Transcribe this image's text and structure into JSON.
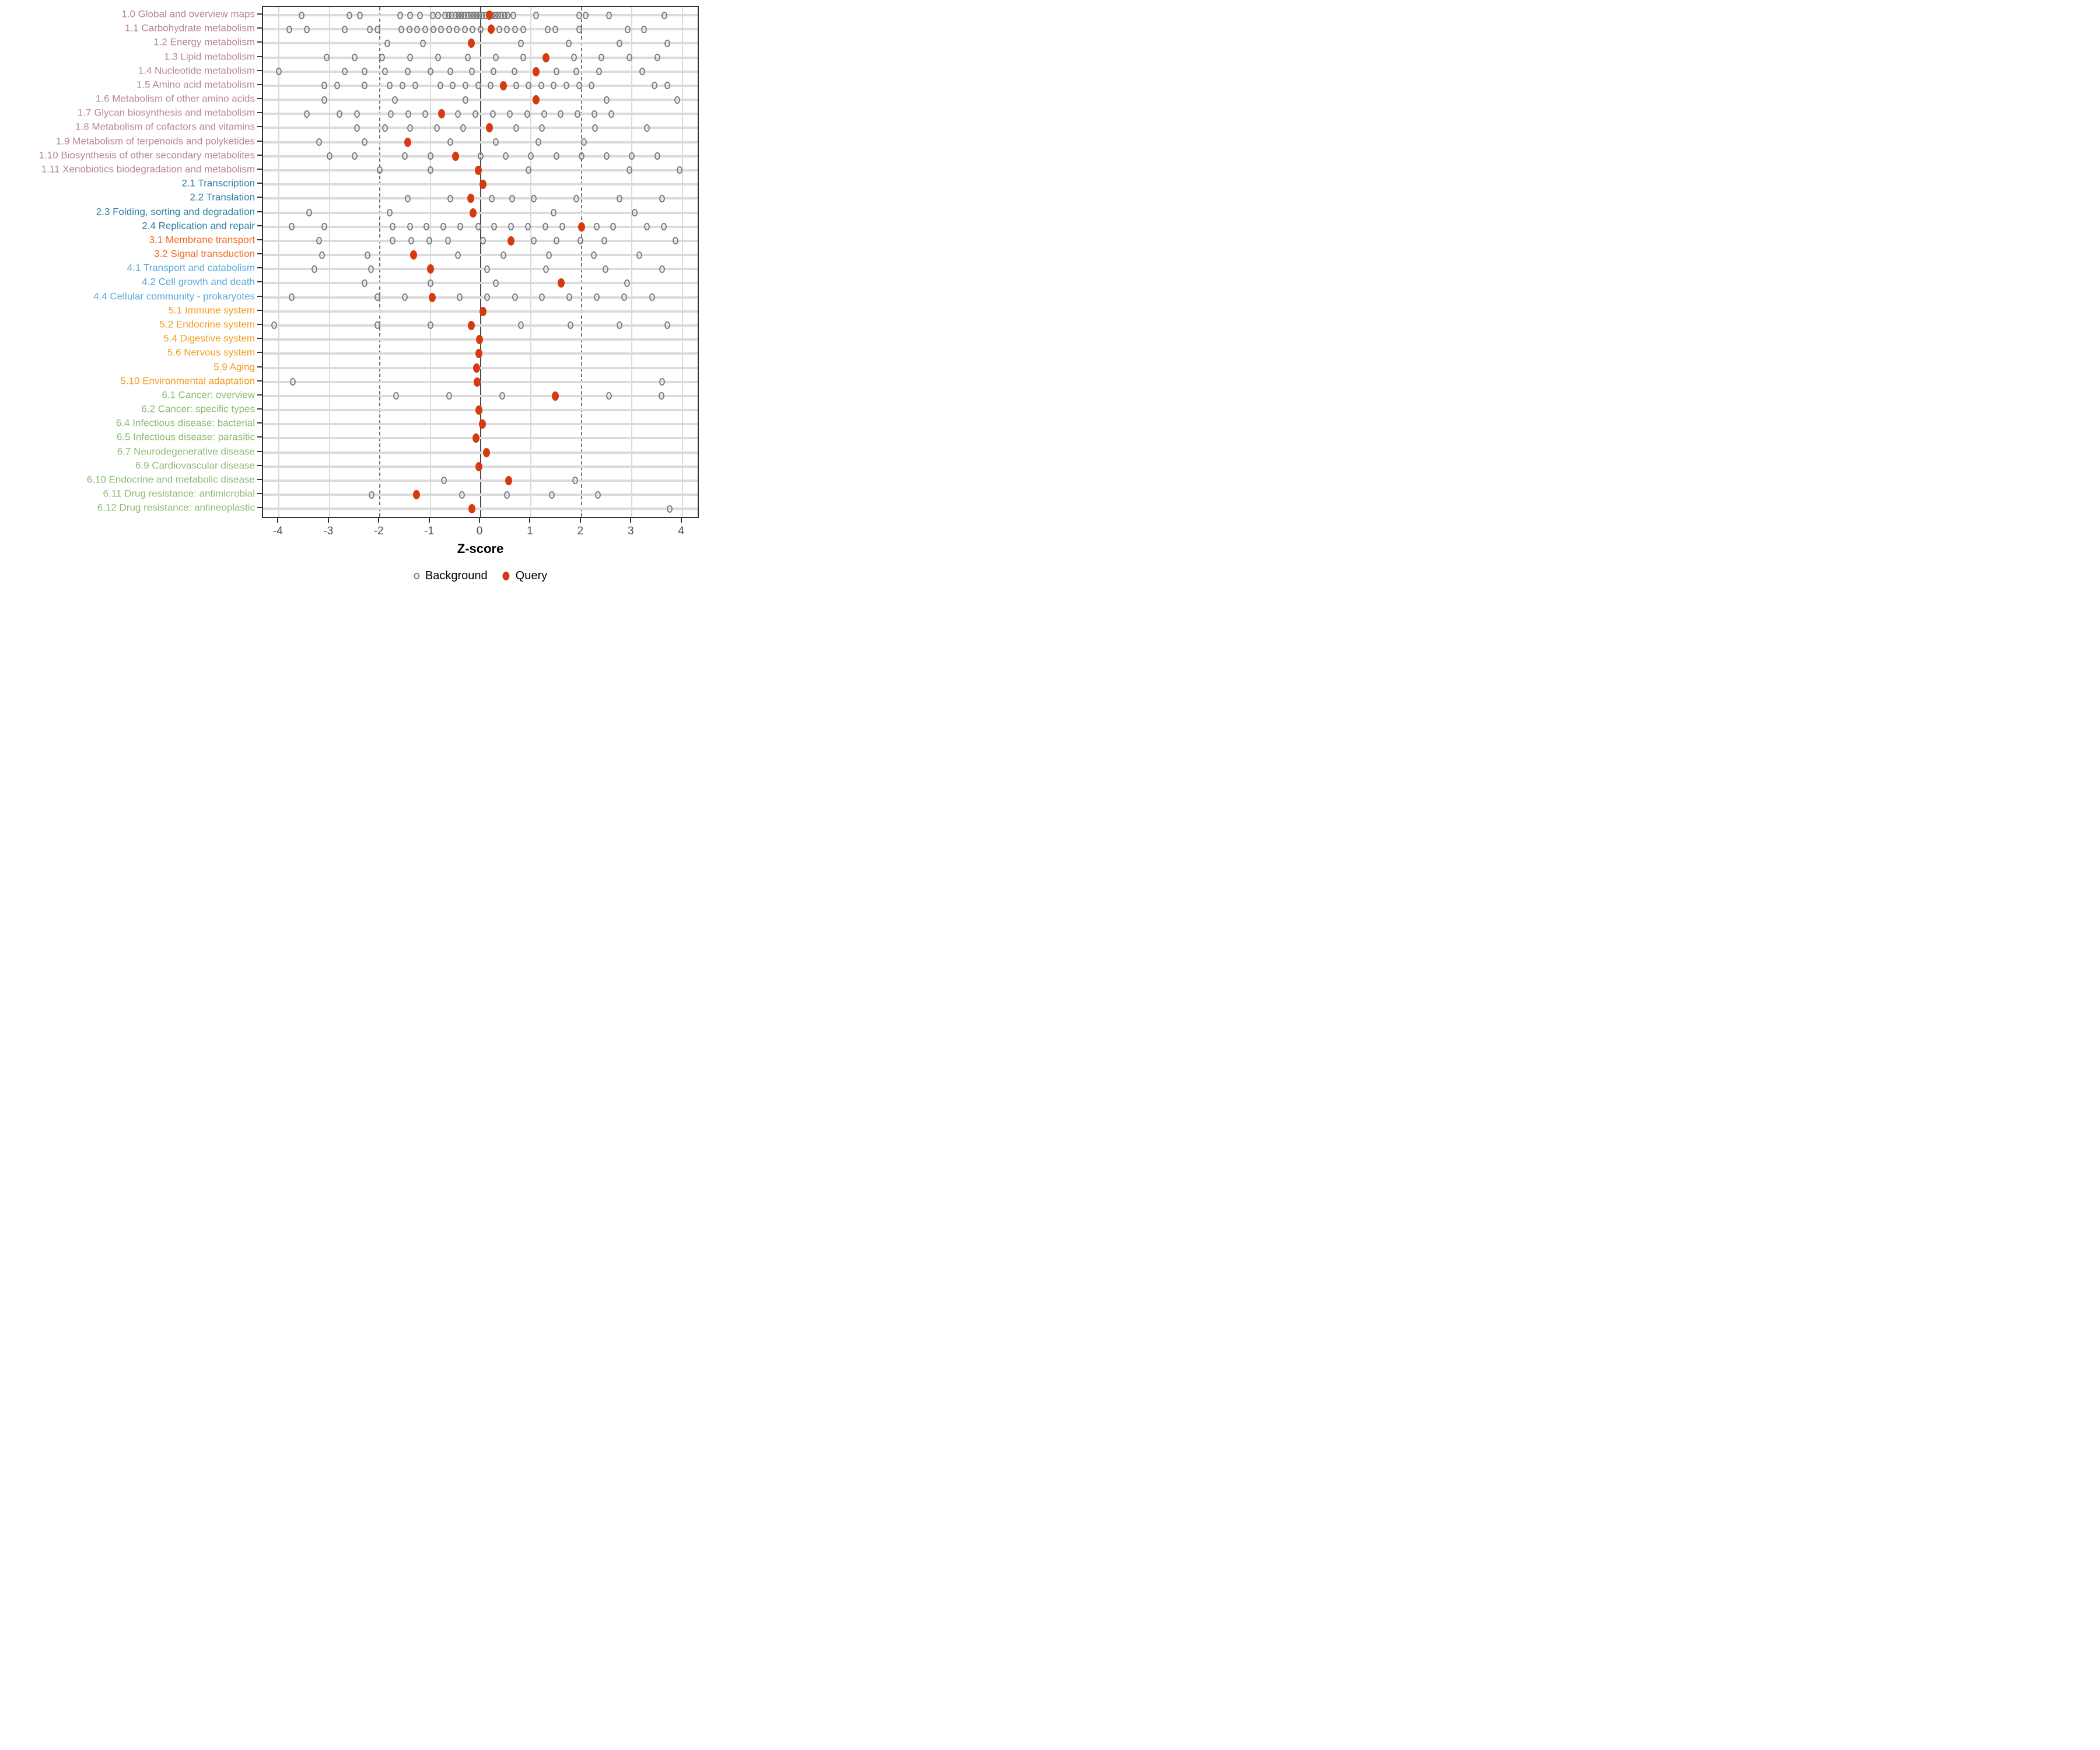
{
  "chart_data": {
    "type": "scatter",
    "title": "",
    "xlabel": "Z-score",
    "x_ticks": [
      -4,
      -3,
      -2,
      -1,
      0,
      1,
      2,
      3,
      4
    ],
    "xlim": [
      -4.33,
      4.33
    ],
    "reference_lines": {
      "zero_line": 0,
      "dashed_lines": [
        -2,
        2
      ]
    },
    "grid": "on",
    "legend": {
      "position": "bottom",
      "background_label": "Background",
      "query_label": "Query"
    },
    "group_colors": {
      "1": "#ba8590",
      "2": "#2e7ea6",
      "3": "#f26822",
      "4": "#5aa7d9",
      "5": "#f39c1f",
      "6": "#8cba70"
    },
    "point_colors": {
      "background_stroke": "#7e7e7e",
      "query_fill": "#d63b10"
    },
    "panel_colors": {
      "grid_minor": "#dadada",
      "row_band": "#dbdbdb",
      "dashed_line": "#707070",
      "zero_line": "#4d4d4d",
      "border": "#333333"
    },
    "rows": [
      {
        "label": "1.0 Global and overview maps",
        "group": "1",
        "query": 0.17,
        "background": [
          -3.55,
          -2.6,
          -2.4,
          -1.6,
          -1.4,
          -1.2,
          -0.95,
          -0.85,
          -0.7,
          -0.64,
          -0.58,
          -0.5,
          -0.44,
          -0.38,
          -0.32,
          -0.26,
          -0.2,
          -0.14,
          -0.08,
          -0.02,
          0.04,
          0.1,
          0.23,
          0.29,
          0.35,
          0.41,
          0.47,
          0.53,
          0.65,
          1.1,
          1.95,
          2.08,
          2.55,
          3.65
        ]
      },
      {
        "label": "1.1 Carbohydrate metabolism",
        "group": "1",
        "query": 0.21,
        "background": [
          -3.8,
          -3.45,
          -2.7,
          -2.2,
          -2.05,
          -1.57,
          -1.41,
          -1.26,
          -1.1,
          -0.94,
          -0.79,
          -0.63,
          -0.47,
          -0.31,
          -0.16,
          0.0,
          0.37,
          0.52,
          0.68,
          0.84,
          1.33,
          1.48,
          1.96,
          2.91,
          3.24
        ]
      },
      {
        "label": "1.2 Energy metabolism",
        "group": "1",
        "query": -0.18,
        "background": [
          -1.85,
          -1.15,
          0.8,
          1.75,
          2.75,
          3.7
        ]
      },
      {
        "label": "1.3 Lipid metabolism",
        "group": "1",
        "query": 1.3,
        "background": [
          -3.05,
          -2.5,
          -1.95,
          -1.4,
          -0.85,
          -0.25,
          0.3,
          0.85,
          1.85,
          2.4,
          2.95,
          3.5
        ]
      },
      {
        "label": "1.4 Nucleotide metabolism",
        "group": "1",
        "query": 1.1,
        "background": [
          -4.0,
          -2.7,
          -2.3,
          -1.9,
          -1.45,
          -1.0,
          -0.6,
          -0.17,
          0.25,
          0.67,
          1.5,
          1.9,
          2.35,
          3.2
        ]
      },
      {
        "label": "1.5 Amino acid metabolism",
        "group": "1",
        "query": 0.45,
        "background": [
          -3.1,
          -2.85,
          -2.3,
          -1.8,
          -1.55,
          -1.3,
          -0.8,
          -0.55,
          -0.3,
          -0.05,
          0.2,
          0.7,
          0.95,
          1.2,
          1.45,
          1.7,
          1.95,
          2.2,
          3.45,
          3.7
        ]
      },
      {
        "label": "1.6 Metabolism of other amino acids",
        "group": "1",
        "query": 1.1,
        "background": [
          -3.1,
          -1.7,
          -0.3,
          2.5,
          3.9
        ]
      },
      {
        "label": "1.7 Glycan biosynthesis and metabolism",
        "group": "1",
        "query": -0.78,
        "background": [
          -3.45,
          -2.8,
          -2.45,
          -1.78,
          -1.44,
          -1.1,
          -0.45,
          -0.1,
          0.24,
          0.58,
          0.92,
          1.26,
          1.59,
          1.92,
          2.26,
          2.59
        ]
      },
      {
        "label": "1.8 Metabolism of cofactors and vitamins",
        "group": "1",
        "query": 0.17,
        "background": [
          -2.45,
          -1.9,
          -1.4,
          -0.87,
          -0.35,
          0.7,
          1.22,
          2.27,
          3.3
        ]
      },
      {
        "label": "1.9 Metabolism of terpenoids and polyketides",
        "group": "1",
        "query": -1.45,
        "background": [
          -3.2,
          -2.3,
          -0.6,
          0.3,
          1.15,
          2.05
        ]
      },
      {
        "label": "1.10 Biosynthesis of other secondary metabolites",
        "group": "1",
        "query": -0.5,
        "background": [
          -3.0,
          -2.5,
          -1.5,
          -1.0,
          0.0,
          0.5,
          1.0,
          1.5,
          2.0,
          2.5,
          3.0,
          3.5
        ]
      },
      {
        "label": "1.11 Xenobiotics biodegradation and metabolism",
        "group": "1",
        "query": -0.05,
        "background": [
          -2.0,
          -1.0,
          0.95,
          2.95,
          3.95
        ]
      },
      {
        "label": "2.1 Transcription",
        "group": "2",
        "query": 0.05,
        "background": []
      },
      {
        "label": "2.2 Translation",
        "group": "2",
        "query": -0.2,
        "background": [
          -1.45,
          -0.6,
          0.22,
          0.63,
          1.05,
          1.9,
          2.75,
          3.6
        ]
      },
      {
        "label": "2.3 Folding, sorting and degradation",
        "group": "2",
        "query": -0.15,
        "background": [
          -3.4,
          -1.8,
          1.45,
          3.05
        ]
      },
      {
        "label": "2.4 Replication and repair",
        "group": "2",
        "query": 2.0,
        "background": [
          -3.75,
          -3.1,
          -1.75,
          -1.4,
          -1.08,
          -0.74,
          -0.4,
          -0.05,
          0.27,
          0.6,
          0.94,
          1.28,
          1.62,
          2.3,
          2.63,
          3.3,
          3.63
        ]
      },
      {
        "label": "3.1 Membrane transport",
        "group": "3",
        "query": 0.6,
        "background": [
          -3.2,
          -1.75,
          -1.38,
          -1.02,
          -0.65,
          0.05,
          1.05,
          1.5,
          1.98,
          2.45,
          3.87
        ]
      },
      {
        "label": "3.2 Signal transduction",
        "group": "3",
        "query": -1.33,
        "background": [
          -3.15,
          -2.25,
          -0.45,
          0.45,
          1.35,
          2.25,
          3.15
        ]
      },
      {
        "label": "4.1 Transport and catabolism",
        "group": "4",
        "query": -1.0,
        "background": [
          -3.3,
          -2.18,
          0.13,
          1.3,
          2.48,
          3.6
        ]
      },
      {
        "label": "4.2 Cell growth and death",
        "group": "4",
        "query": 1.6,
        "background": [
          -2.3,
          -1.0,
          0.3,
          2.9
        ]
      },
      {
        "label": "4.4 Cellular community - prokaryotes",
        "group": "4",
        "query": -0.96,
        "background": [
          -3.75,
          -2.05,
          -1.5,
          -0.42,
          0.13,
          0.68,
          1.22,
          1.76,
          2.3,
          2.85,
          3.4
        ]
      },
      {
        "label": "5.1 Immune system",
        "group": "5",
        "query": 0.05,
        "background": []
      },
      {
        "label": "5.2 Endocrine system",
        "group": "5",
        "query": -0.18,
        "background": [
          -4.1,
          -2.05,
          -1.0,
          0.8,
          1.78,
          2.75,
          3.7
        ]
      },
      {
        "label": "5.4 Digestive system",
        "group": "5",
        "query": -0.02,
        "background": []
      },
      {
        "label": "5.6 Nervous system",
        "group": "5",
        "query": -0.03,
        "background": []
      },
      {
        "label": "5.9 Aging",
        "group": "5",
        "query": -0.08,
        "background": []
      },
      {
        "label": "5.10 Environmental adaptation",
        "group": "5",
        "query": -0.07,
        "background": [
          -3.72,
          3.6
        ]
      },
      {
        "label": "6.1 Cancer: overview",
        "group": "6",
        "query": 1.48,
        "background": [
          -1.68,
          -0.63,
          0.43,
          2.54,
          3.59
        ]
      },
      {
        "label": "6.2 Cancer: specific types",
        "group": "6",
        "query": -0.03,
        "background": []
      },
      {
        "label": "6.4 Infectious disease: bacterial",
        "group": "6",
        "query": 0.03,
        "background": []
      },
      {
        "label": "6.5 Infectious disease: parasitic",
        "group": "6",
        "query": -0.09,
        "background": []
      },
      {
        "label": "6.7 Neurodegenerative disease",
        "group": "6",
        "query": 0.12,
        "background": []
      },
      {
        "label": "6.9 Cardiovascular disease",
        "group": "6",
        "query": -0.03,
        "background": []
      },
      {
        "label": "6.10 Endocrine and metabolic disease",
        "group": "6",
        "query": 0.56,
        "background": [
          -0.73,
          1.87
        ]
      },
      {
        "label": "6.11 Drug resistance: antimicrobial",
        "group": "6",
        "query": -1.27,
        "background": [
          -2.16,
          -0.37,
          0.52,
          1.41,
          2.32
        ]
      },
      {
        "label": "6.12 Drug resistance: antineoplastic",
        "group": "6",
        "query": -0.17,
        "background": [
          3.75
        ]
      }
    ]
  }
}
